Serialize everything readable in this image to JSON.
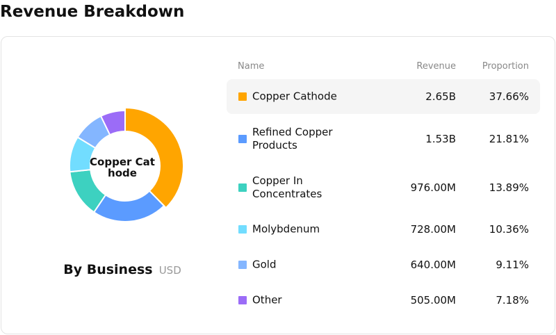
{
  "page": {
    "title": "Revenue Breakdown"
  },
  "chart": {
    "center_label": "Copper Cathode",
    "caption": "By Business",
    "unit": "USD"
  },
  "table": {
    "headers": {
      "name": "Name",
      "revenue": "Revenue",
      "proportion": "Proportion"
    },
    "rows": [
      {
        "name": "Copper Cathode",
        "revenue": "2.65B",
        "proportion": "37.66%",
        "color": "#FFA500"
      },
      {
        "name": "Refined Copper Products",
        "revenue": "1.53B",
        "proportion": "21.81%",
        "color": "#5B9BFF"
      },
      {
        "name": "Copper In Concentrates",
        "revenue": "976.00M",
        "proportion": "13.89%",
        "color": "#3DD1C0"
      },
      {
        "name": "Molybdenum",
        "revenue": "728.00M",
        "proportion": "10.36%",
        "color": "#72DDFF"
      },
      {
        "name": "Gold",
        "revenue": "640.00M",
        "proportion": "9.11%",
        "color": "#84B6FF"
      },
      {
        "name": "Other",
        "revenue": "505.00M",
        "proportion": "7.18%",
        "color": "#9B6CF7"
      }
    ]
  },
  "chart_data": {
    "type": "pie",
    "categories": [
      "Copper Cathode",
      "Refined Copper Products",
      "Copper In Concentrates",
      "Molybdenum",
      "Gold",
      "Other"
    ],
    "values": [
      37.66,
      21.81,
      13.89,
      10.36,
      9.11,
      7.18
    ],
    "colors": [
      "#FFA500",
      "#5B9BFF",
      "#3DD1C0",
      "#72DDFF",
      "#84B6FF",
      "#9B6CF7"
    ],
    "highlighted": "Copper Cathode",
    "donut": true
  }
}
